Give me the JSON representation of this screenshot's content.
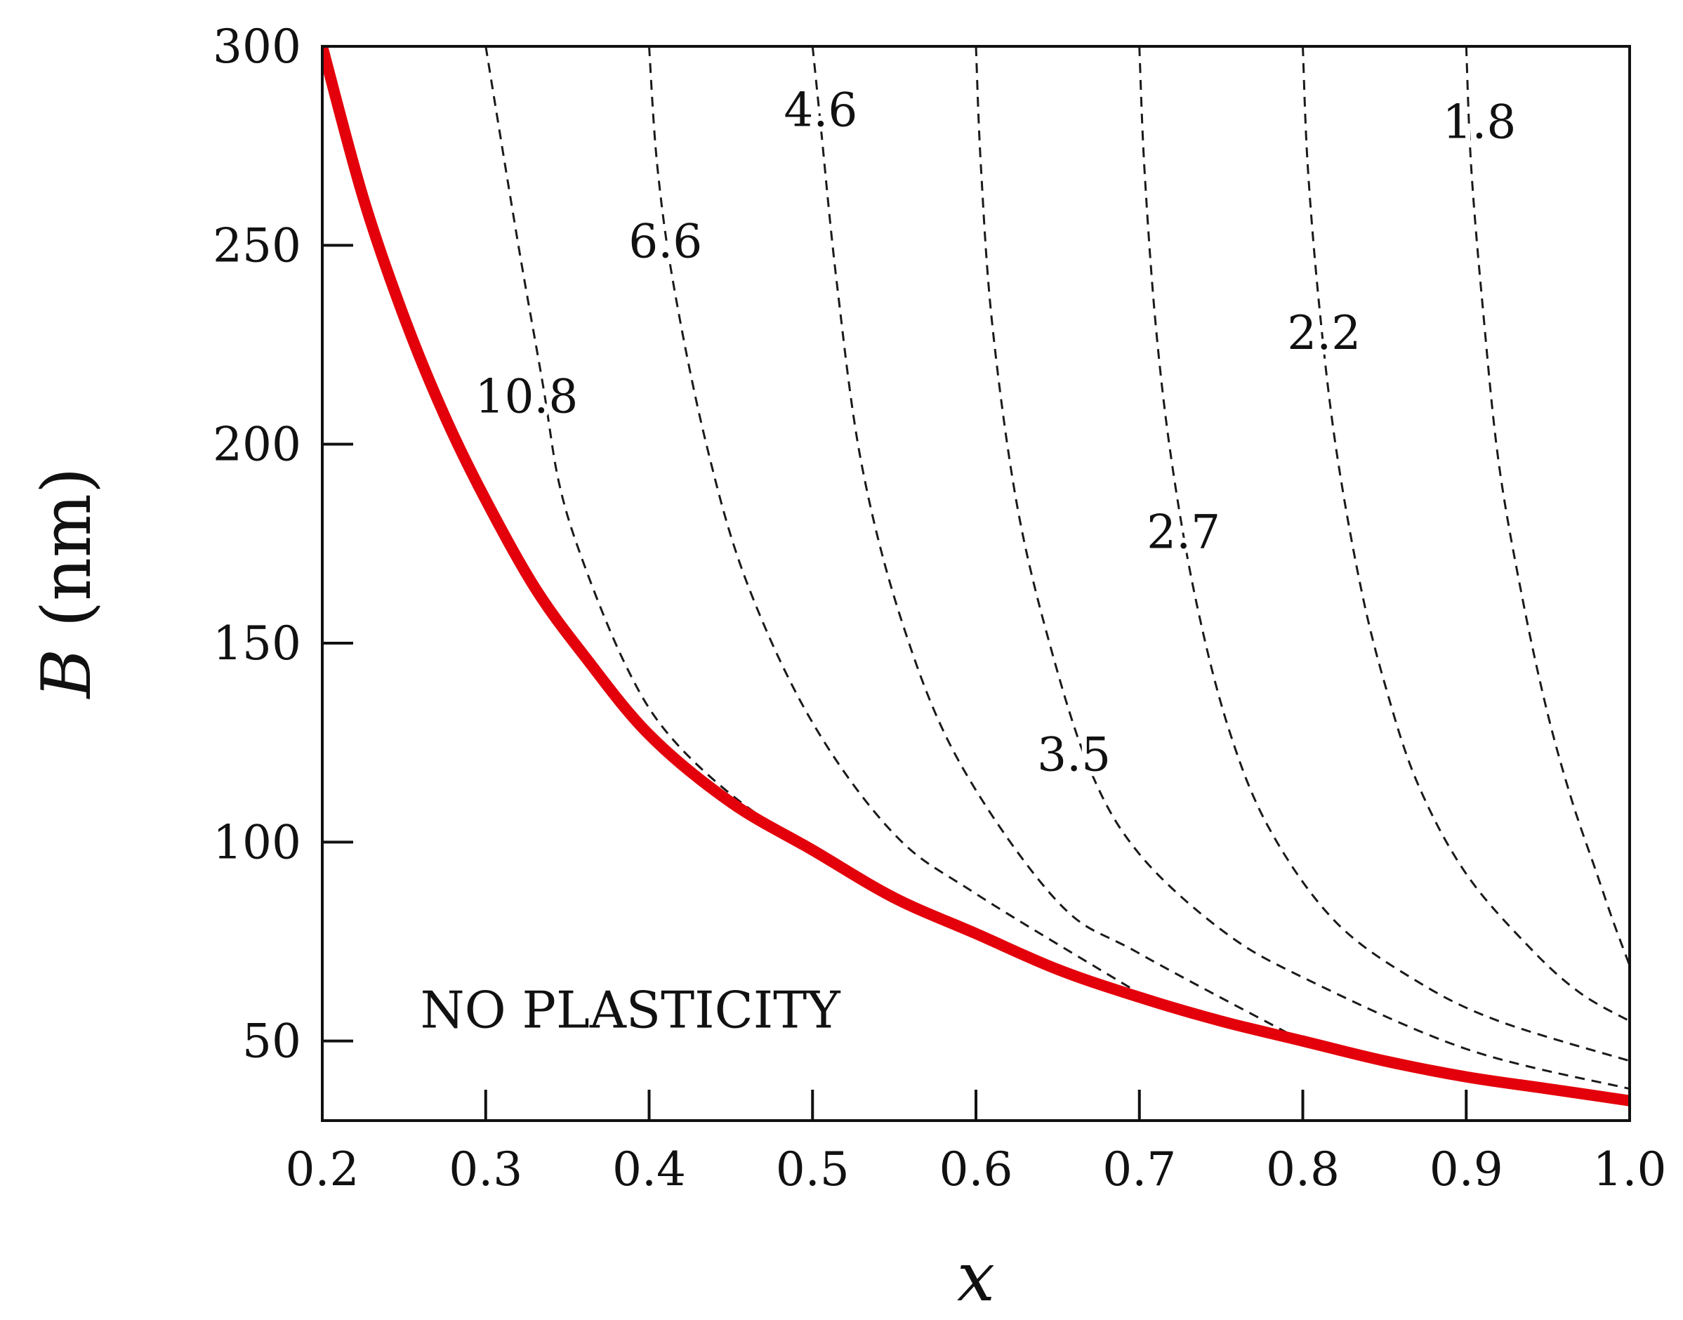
{
  "colors": {
    "critical": "#e3000b",
    "contour": "#1a1a1a",
    "frame": "#111111",
    "background": "#ffffff"
  },
  "chart_data": {
    "type": "line",
    "title": "",
    "xlabel": "x",
    "ylabel_symbol": "B",
    "ylabel_unit": "(nm)",
    "xlim": [
      0.2,
      1.0
    ],
    "ylim": [
      30,
      300
    ],
    "x_ticks": [
      {
        "value": 0.2,
        "label": "0.2"
      },
      {
        "value": 0.3,
        "label": "0.3"
      },
      {
        "value": 0.4,
        "label": "0.4"
      },
      {
        "value": 0.5,
        "label": "0.5"
      },
      {
        "value": 0.6,
        "label": "0.6"
      },
      {
        "value": 0.7,
        "label": "0.7"
      },
      {
        "value": 0.8,
        "label": "0.8"
      },
      {
        "value": 0.9,
        "label": "0.9"
      },
      {
        "value": 1.0,
        "label": "1.0"
      }
    ],
    "y_ticks": [
      {
        "value": 50,
        "label": "50"
      },
      {
        "value": 100,
        "label": "100"
      },
      {
        "value": 150,
        "label": "150"
      },
      {
        "value": 200,
        "label": "200"
      },
      {
        "value": 250,
        "label": "250"
      },
      {
        "value": 300,
        "label": "300"
      }
    ],
    "region_label": {
      "text": "NO PLASTICITY",
      "x": 0.26,
      "y": 58
    },
    "critical_curve": {
      "name": "critical",
      "style": "solid",
      "x": [
        0.2,
        0.225,
        0.25,
        0.275,
        0.3,
        0.33,
        0.36,
        0.4,
        0.45,
        0.5,
        0.55,
        0.6,
        0.65,
        0.7,
        0.75,
        0.8,
        0.85,
        0.9,
        0.95,
        1.0
      ],
      "y": [
        300,
        262,
        232,
        207,
        186,
        164,
        147,
        127,
        110,
        98,
        86,
        77,
        68,
        61,
        55,
        50,
        45,
        41,
        38,
        35
      ]
    },
    "contours": [
      {
        "label": "10.8",
        "label_x": 0.325,
        "label_y": 212,
        "x": [
          0.3,
          0.32,
          0.335,
          0.345,
          0.36,
          0.385,
          0.41,
          0.45,
          0.5,
          0.55
        ],
        "y": [
          300,
          250,
          215,
          190,
          170,
          145,
          128,
          112,
          98,
          87
        ]
      },
      {
        "label": "6.6",
        "label_x": 0.41,
        "label_y": 251,
        "x": [
          0.4,
          0.405,
          0.415,
          0.435,
          0.46,
          0.5,
          0.55,
          0.6,
          0.7
        ],
        "y": [
          300,
          270,
          240,
          200,
          165,
          130,
          102,
          87,
          62
        ]
      },
      {
        "label": "4.6",
        "label_x": 0.505,
        "label_y": 284,
        "x": [
          0.5,
          0.505,
          0.515,
          0.53,
          0.555,
          0.59,
          0.65,
          0.7,
          0.8
        ],
        "y": [
          300,
          280,
          240,
          195,
          155,
          120,
          85,
          72,
          50
        ]
      },
      {
        "label": "3.5",
        "label_x": 0.66,
        "label_y": 122,
        "x": [
          0.6,
          0.603,
          0.61,
          0.625,
          0.645,
          0.67,
          0.7,
          0.75,
          0.8,
          0.9,
          1.0
        ],
        "y": [
          300,
          270,
          230,
          185,
          150,
          118,
          97,
          78,
          66,
          48,
          38
        ]
      },
      {
        "label": "2.7",
        "label_x": 0.727,
        "label_y": 178,
        "x": [
          0.7,
          0.703,
          0.71,
          0.72,
          0.735,
          0.755,
          0.78,
          0.82,
          0.87,
          0.92,
          1.0
        ],
        "y": [
          300,
          270,
          230,
          195,
          160,
          128,
          103,
          80,
          65,
          55,
          45
        ]
      },
      {
        "label": "2.2",
        "label_x": 0.813,
        "label_y": 228,
        "x": [
          0.8,
          0.803,
          0.81,
          0.82,
          0.835,
          0.85,
          0.87,
          0.9,
          0.94,
          0.97,
          1.0
        ],
        "y": [
          300,
          270,
          235,
          200,
          165,
          140,
          115,
          92,
          73,
          62,
          55
        ]
      },
      {
        "label": "1.8",
        "label_x": 0.908,
        "label_y": 281,
        "x": [
          0.9,
          0.903,
          0.91,
          0.92,
          0.935,
          0.95,
          0.965,
          0.98,
          0.99,
          1.0
        ],
        "y": [
          300,
          270,
          235,
          195,
          160,
          132,
          110,
          92,
          80,
          69
        ]
      }
    ]
  }
}
